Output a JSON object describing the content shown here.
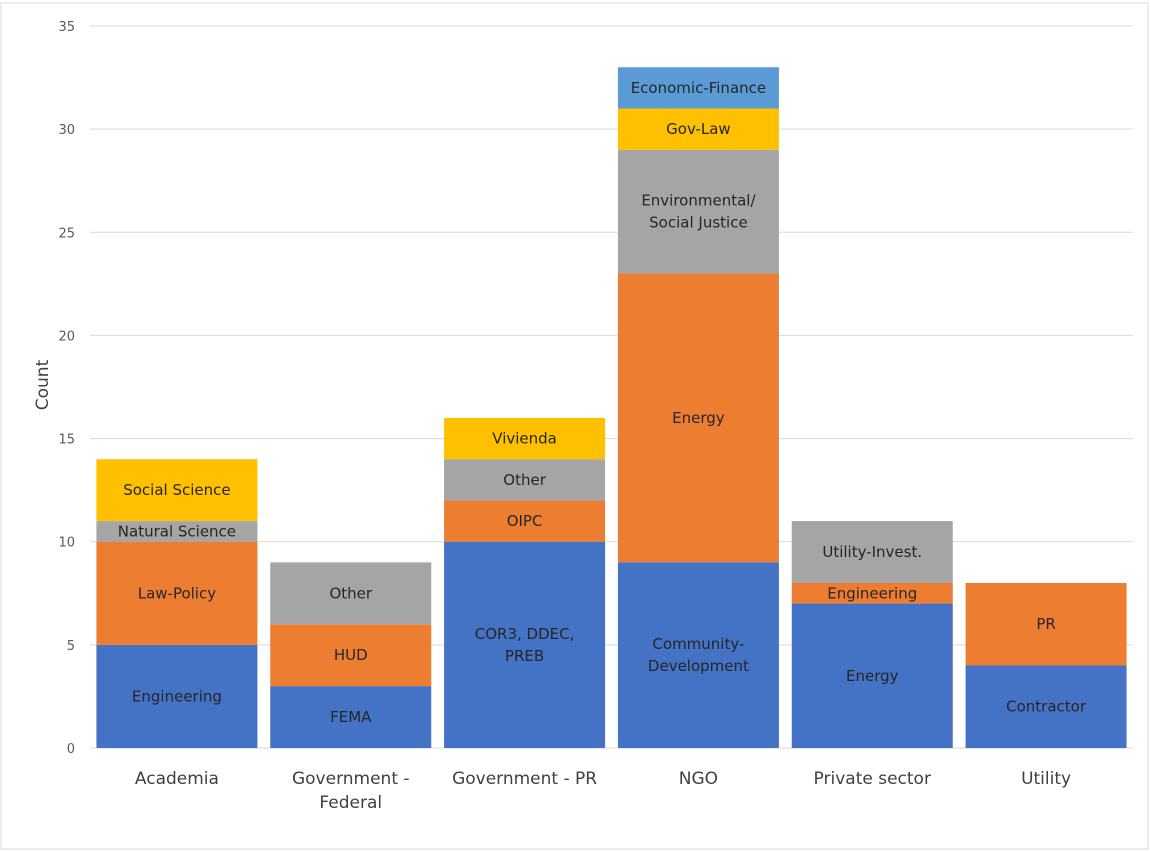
{
  "chart_data": {
    "type": "bar",
    "stacked": true,
    "xlabel": "",
    "ylabel": "Count",
    "ylim": [
      0,
      35
    ],
    "yticks": [
      0,
      5,
      10,
      15,
      20,
      25,
      30,
      35
    ],
    "grid": true,
    "legend": "none",
    "categories": [
      [
        "Academia"
      ],
      [
        "Government -",
        "Federal"
      ],
      [
        "Government - PR"
      ],
      [
        "NGO"
      ],
      [
        "Private sector"
      ],
      [
        "Utility"
      ]
    ],
    "stacks": [
      [
        {
          "label": [
            "Engineering"
          ],
          "value": 5,
          "color": "#4472c4"
        },
        {
          "label": [
            "Law-Policy"
          ],
          "value": 5,
          "color": "#ed7d31"
        },
        {
          "label": [
            "Natural Science"
          ],
          "value": 1,
          "color": "#a5a5a5"
        },
        {
          "label": [
            "Social Science"
          ],
          "value": 3,
          "color": "#ffc000"
        }
      ],
      [
        {
          "label": [
            "FEMA"
          ],
          "value": 3,
          "color": "#4472c4"
        },
        {
          "label": [
            "HUD"
          ],
          "value": 3,
          "color": "#ed7d31"
        },
        {
          "label": [
            "Other"
          ],
          "value": 3,
          "color": "#a5a5a5"
        }
      ],
      [
        {
          "label": [
            "COR3, DDEC,",
            "PREB"
          ],
          "value": 10,
          "color": "#4472c4"
        },
        {
          "label": [
            "OIPC"
          ],
          "value": 2,
          "color": "#ed7d31"
        },
        {
          "label": [
            "Other"
          ],
          "value": 2,
          "color": "#a5a5a5"
        },
        {
          "label": [
            "Vivienda"
          ],
          "value": 2,
          "color": "#ffc000"
        }
      ],
      [
        {
          "label": [
            "Community-",
            "Development"
          ],
          "value": 9,
          "color": "#4472c4"
        },
        {
          "label": [
            "Energy"
          ],
          "value": 14,
          "color": "#ed7d31"
        },
        {
          "label": [
            "Environmental/",
            "Social Justice"
          ],
          "value": 6,
          "color": "#a5a5a5"
        },
        {
          "label": [
            "Gov-Law"
          ],
          "value": 2,
          "color": "#ffc000"
        },
        {
          "label": [
            "Economic-Finance"
          ],
          "value": 2,
          "color": "#5b9bd5"
        }
      ],
      [
        {
          "label": [
            "Energy"
          ],
          "value": 7,
          "color": "#4472c4"
        },
        {
          "label": [
            "Engineering"
          ],
          "value": 1,
          "color": "#ed7d31"
        },
        {
          "label": [
            "Utility-Invest."
          ],
          "value": 3,
          "color": "#a5a5a5"
        }
      ],
      [
        {
          "label": [
            "Contractor"
          ],
          "value": 4,
          "color": "#4472c4"
        },
        {
          "label": [
            "PR"
          ],
          "value": 4,
          "color": "#ed7d31"
        }
      ]
    ]
  }
}
